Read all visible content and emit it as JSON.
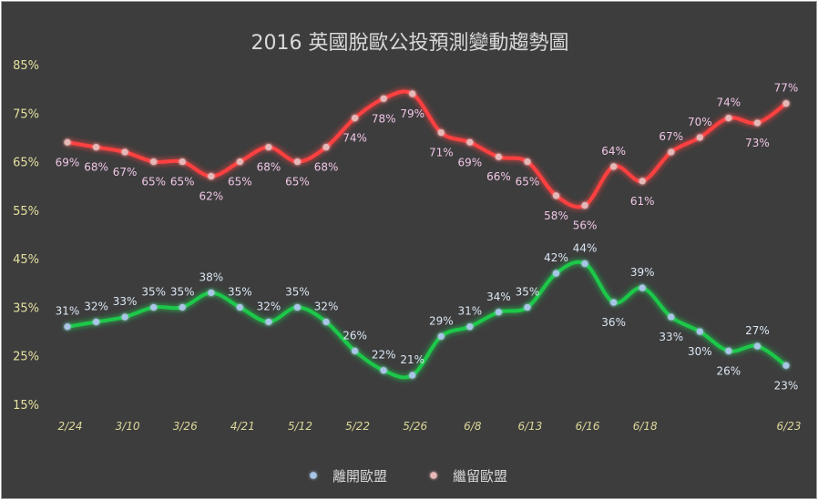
{
  "chart_data": {
    "type": "line",
    "title": "2016 英國脫歐公投預測變動趨勢圖",
    "xlabel": "",
    "ylabel": "",
    "categories": [
      "2/24",
      "",
      "3/10",
      "",
      "3/26",
      "",
      "4/21",
      "",
      "5/12",
      "",
      "5/22",
      "",
      "5/26",
      "",
      "6/8",
      "",
      "6/13",
      "",
      "6/16",
      "",
      "6/18",
      "",
      "",
      "",
      "",
      "6/23"
    ],
    "series": [
      {
        "name": "離開歐盟",
        "color": "#1fc84a",
        "values": [
          31,
          32,
          33,
          35,
          35,
          38,
          35,
          32,
          35,
          32,
          26,
          22,
          21,
          29,
          31,
          34,
          35,
          42,
          44,
          36,
          39,
          33,
          30,
          26,
          27,
          23
        ]
      },
      {
        "name": "繼留歐盟",
        "color": "#ff4040",
        "values": [
          69,
          68,
          67,
          65,
          65,
          62,
          65,
          68,
          65,
          68,
          74,
          78,
          79,
          71,
          69,
          66,
          65,
          58,
          56,
          64,
          61,
          67,
          70,
          74,
          73,
          77
        ]
      }
    ],
    "ylim": [
      15,
      85
    ],
    "yticks": [
      85,
      75,
      65,
      55,
      45,
      35,
      25,
      15
    ],
    "value_suffix": "%",
    "smooth": true,
    "data_labels": true,
    "grid": false,
    "legend": "bottom-center"
  }
}
